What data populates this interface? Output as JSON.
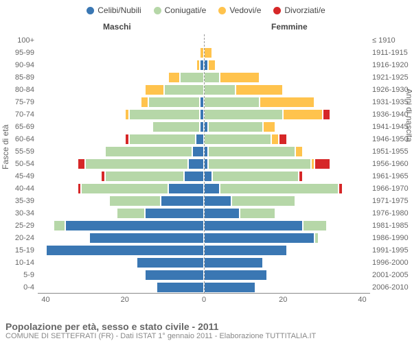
{
  "chart": {
    "type": "population-pyramid",
    "legend": [
      {
        "label": "Celibi/Nubili",
        "color": "#3a77b3"
      },
      {
        "label": "Coniugati/e",
        "color": "#b6d7a8"
      },
      {
        "label": "Vedovi/e",
        "color": "#ffc34d"
      },
      {
        "label": "Divorziati/e",
        "color": "#d62728"
      }
    ],
    "side_labels": {
      "left": "Maschi",
      "right": "Femmine"
    },
    "y_left_title": "Fasce di età",
    "y_right_title": "Anni di nascita",
    "x_ticks": [
      40,
      20,
      0,
      20,
      40
    ],
    "x_max": 42,
    "background_color": "#ffffff",
    "grid_color": "#e8e8e8",
    "font_size_labels": 11,
    "rows": [
      {
        "age": "100+",
        "birth": "≤ 1910",
        "m": [
          0,
          0,
          0,
          0
        ],
        "f": [
          0,
          0,
          0,
          0
        ]
      },
      {
        "age": "95-99",
        "birth": "1911-1915",
        "m": [
          0,
          0,
          1,
          0
        ],
        "f": [
          0,
          0,
          2,
          0
        ]
      },
      {
        "age": "90-94",
        "birth": "1916-1920",
        "m": [
          1,
          0,
          1,
          0
        ],
        "f": [
          1,
          0,
          2,
          0
        ]
      },
      {
        "age": "85-89",
        "birth": "1921-1925",
        "m": [
          0,
          6,
          3,
          0
        ],
        "f": [
          0,
          4,
          10,
          0
        ]
      },
      {
        "age": "80-84",
        "birth": "1926-1930",
        "m": [
          0,
          10,
          5,
          0
        ],
        "f": [
          0,
          8,
          12,
          0
        ]
      },
      {
        "age": "75-79",
        "birth": "1931-1935",
        "m": [
          1,
          13,
          2,
          0
        ],
        "f": [
          0,
          14,
          14,
          0
        ]
      },
      {
        "age": "70-74",
        "birth": "1936-1940",
        "m": [
          1,
          18,
          1,
          0
        ],
        "f": [
          0,
          20,
          10,
          2
        ]
      },
      {
        "age": "65-69",
        "birth": "1941-1945",
        "m": [
          1,
          12,
          0,
          0
        ],
        "f": [
          1,
          14,
          3,
          0
        ]
      },
      {
        "age": "60-64",
        "birth": "1946-1950",
        "m": [
          2,
          17,
          0,
          1
        ],
        "f": [
          0,
          17,
          2,
          2
        ]
      },
      {
        "age": "55-59",
        "birth": "1951-1955",
        "m": [
          3,
          22,
          0,
          0
        ],
        "f": [
          1,
          22,
          2,
          0
        ]
      },
      {
        "age": "50-54",
        "birth": "1956-1960",
        "m": [
          4,
          26,
          0,
          2
        ],
        "f": [
          1,
          26,
          1,
          4
        ]
      },
      {
        "age": "45-49",
        "birth": "1961-1965",
        "m": [
          5,
          20,
          0,
          1
        ],
        "f": [
          2,
          22,
          0,
          1
        ]
      },
      {
        "age": "40-44",
        "birth": "1966-1970",
        "m": [
          9,
          22,
          0,
          1
        ],
        "f": [
          4,
          30,
          0,
          1
        ]
      },
      {
        "age": "35-39",
        "birth": "1971-1975",
        "m": [
          11,
          13,
          0,
          0
        ],
        "f": [
          7,
          16,
          0,
          0
        ]
      },
      {
        "age": "30-34",
        "birth": "1976-1980",
        "m": [
          15,
          7,
          0,
          0
        ],
        "f": [
          9,
          9,
          0,
          0
        ]
      },
      {
        "age": "25-29",
        "birth": "1981-1985",
        "m": [
          35,
          3,
          0,
          0
        ],
        "f": [
          25,
          6,
          0,
          0
        ]
      },
      {
        "age": "20-24",
        "birth": "1986-1990",
        "m": [
          29,
          0,
          0,
          0
        ],
        "f": [
          28,
          1,
          0,
          0
        ]
      },
      {
        "age": "15-19",
        "birth": "1991-1995",
        "m": [
          40,
          0,
          0,
          0
        ],
        "f": [
          21,
          0,
          0,
          0
        ]
      },
      {
        "age": "10-14",
        "birth": "1996-2000",
        "m": [
          17,
          0,
          0,
          0
        ],
        "f": [
          15,
          0,
          0,
          0
        ]
      },
      {
        "age": "5-9",
        "birth": "2001-2005",
        "m": [
          15,
          0,
          0,
          0
        ],
        "f": [
          16,
          0,
          0,
          0
        ]
      },
      {
        "age": "0-4",
        "birth": "2006-2010",
        "m": [
          12,
          0,
          0,
          0
        ],
        "f": [
          13,
          0,
          0,
          0
        ]
      }
    ]
  },
  "footer": {
    "title": "Popolazione per età, sesso e stato civile - 2011",
    "subtitle": "COMUNE DI SETTEFRATI (FR) - Dati ISTAT 1° gennaio 2011 - Elaborazione TUTTITALIA.IT"
  }
}
